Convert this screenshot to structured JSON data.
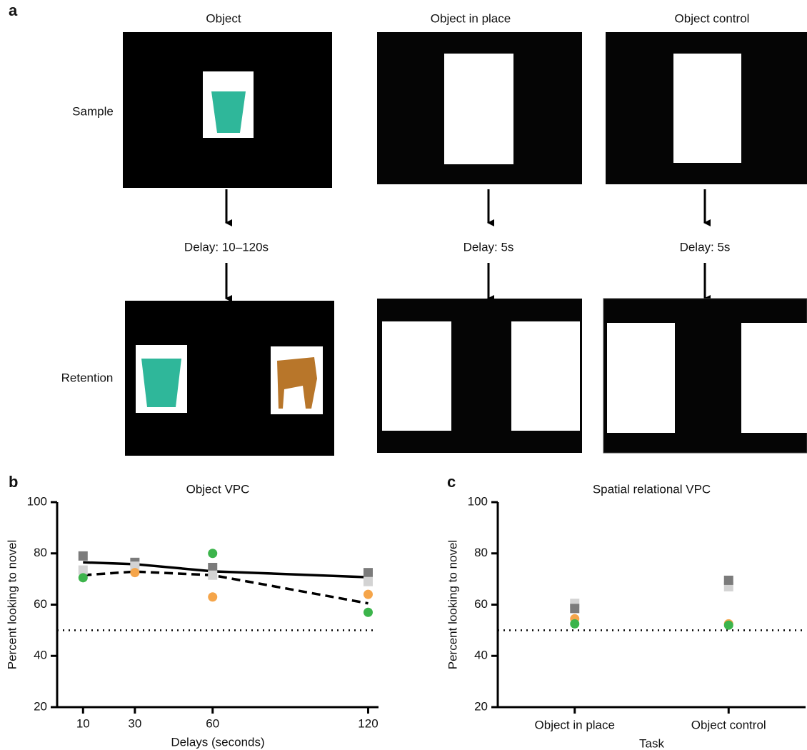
{
  "panel_labels": [
    "a",
    "b",
    "c"
  ],
  "panel_a": {
    "columns": [
      "Object",
      "Object in place",
      "Object control"
    ],
    "rows": [
      "Sample",
      "Retention"
    ],
    "delays": [
      "Delay: 10–120s",
      "Delay: 5s",
      "Delay: 5s"
    ]
  },
  "chart_data": [
    {
      "type": "scatter",
      "title": "Object VPC",
      "x_label": "Delays (seconds)",
      "y_label": "Percent looking to novel",
      "x": [
        10,
        30,
        60,
        120
      ],
      "xlim": [
        0,
        124
      ],
      "xticks": [
        10,
        30,
        60,
        120
      ],
      "ylim": [
        20,
        100
      ],
      "yticks": [
        20,
        40,
        60,
        80,
        100
      ],
      "hline": 50,
      "series": [
        {
          "color": "#7b7b7b",
          "marker": "square",
          "values": [
            79,
            76.5,
            74.5,
            72.5
          ]
        },
        {
          "color": "#d3d3d3",
          "marker": "square",
          "values": [
            73.5,
            75,
            71.5,
            69
          ]
        },
        {
          "color": "#3cb44b",
          "marker": "circle",
          "values": [
            70.5,
            null,
            80,
            57
          ]
        },
        {
          "color": "#f5a54a",
          "marker": "circle",
          "values": [
            null,
            72.5,
            63,
            64
          ]
        },
        {
          "color": "#000000",
          "marker": "none",
          "linestyle": "solid",
          "values": [
            76.5,
            75.8,
            73,
            70.7
          ]
        },
        {
          "color": "#000000",
          "marker": "none",
          "linestyle": "dashed",
          "values": [
            71.5,
            72.9,
            71.5,
            60.5
          ]
        }
      ]
    },
    {
      "type": "scatter",
      "title": "Spatial relational VPC",
      "x_label": "Task",
      "y_label": "Percent looking to novel",
      "categories": [
        "Object in place",
        "Object control"
      ],
      "ylim": [
        20,
        100
      ],
      "yticks": [
        20,
        40,
        60,
        80,
        100
      ],
      "hline": 50,
      "series": [
        {
          "color": "#d3d3d3",
          "marker": "square",
          "values": [
            60.5,
            67
          ]
        },
        {
          "color": "#7b7b7b",
          "marker": "square",
          "values": [
            58.5,
            69.5
          ]
        },
        {
          "color": "#f5a54a",
          "marker": "circle",
          "values": [
            54.5,
            52.5
          ]
        },
        {
          "color": "#3cb44b",
          "marker": "circle",
          "values": [
            52.5,
            52
          ]
        }
      ]
    }
  ]
}
